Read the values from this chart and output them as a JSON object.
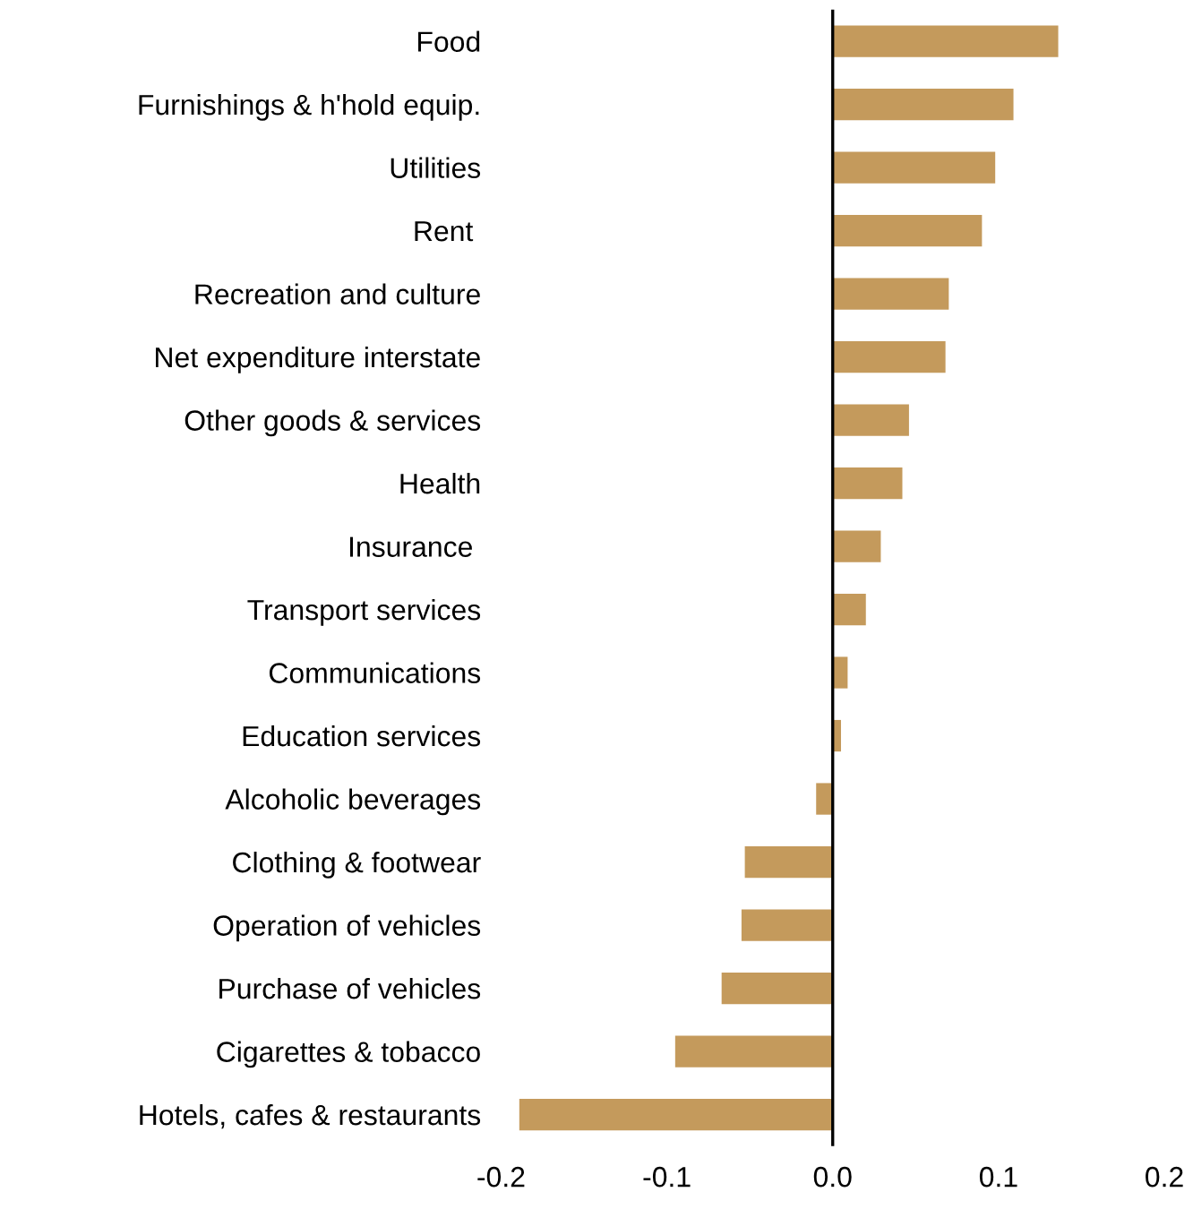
{
  "chart_data": {
    "type": "bar",
    "orientation": "horizontal",
    "categories": [
      "Food",
      "Furnishings & h'hold equip.",
      "Utilities",
      "Rent ",
      "Recreation and culture",
      "Net expenditure interstate",
      "Other goods & services",
      "Health",
      "Insurance ",
      "Transport services",
      "Communications",
      "Education services",
      "Alcoholic beverages",
      "Clothing & footwear",
      "Operation of vehicles",
      "Purchase of vehicles",
      "Cigarettes & tobacco",
      "Hotels, cafes & restaurants"
    ],
    "values": [
      0.136,
      0.109,
      0.098,
      0.09,
      0.07,
      0.068,
      0.046,
      0.042,
      0.029,
      0.02,
      0.009,
      0.005,
      -0.01,
      -0.053,
      -0.055,
      -0.067,
      -0.095,
      -0.189
    ],
    "color": "#c49a5c",
    "xlim": [
      -0.2,
      0.2
    ],
    "xticks": [
      {
        "value": -0.2,
        "label": "-0.2"
      },
      {
        "value": -0.1,
        "label": "-0.1"
      },
      {
        "value": 0,
        "label": "0.0"
      },
      {
        "value": 0.1,
        "label": "0.1"
      },
      {
        "value": 0.2,
        "label": "0.2"
      }
    ],
    "ref_lines": [
      {
        "axis": "x",
        "value": 0,
        "color": "#000000"
      }
    ],
    "grid": false,
    "legend": false
  }
}
